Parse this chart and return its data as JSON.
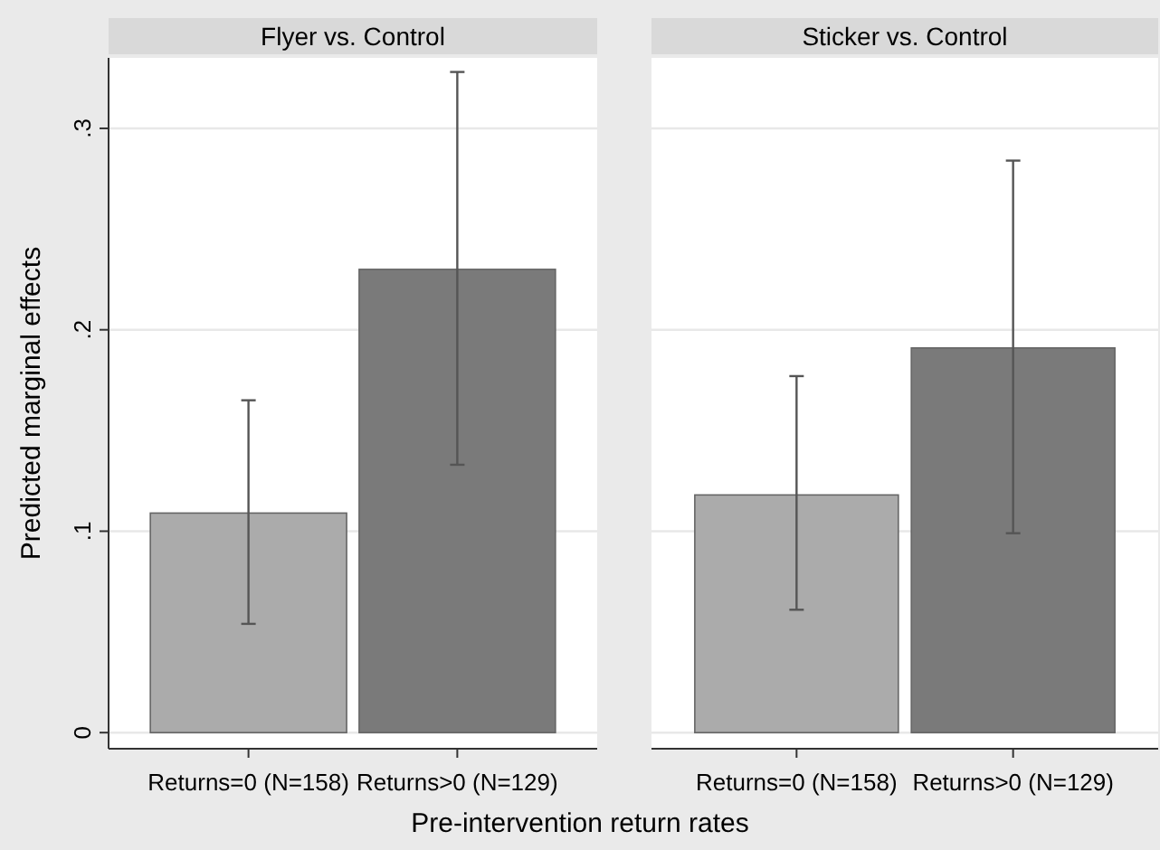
{
  "chart_data": [
    {
      "type": "bar",
      "title": "Flyer vs. Control",
      "ylabel": "Predicted marginal effects",
      "xlabel": "Pre-intervention return rates",
      "categories": [
        "Returns=0 (N=158)",
        "Returns>0 (N=129)"
      ],
      "values": [
        0.109,
        0.23
      ],
      "colors": [
        "#ababab",
        "#7a7a7a"
      ],
      "errors": [
        [
          0.054,
          0.165
        ],
        [
          0.133,
          0.328
        ]
      ],
      "ylim": [
        -0.008,
        0.335
      ],
      "yticks": [
        {
          "value": 0,
          "label": "0"
        },
        {
          "value": 0.1,
          "label": ".1"
        },
        {
          "value": 0.2,
          "label": ".2"
        },
        {
          "value": 0.3,
          "label": ".3"
        }
      ],
      "grid": "y"
    },
    {
      "type": "bar",
      "title": "Sticker vs. Control",
      "categories": [
        "Returns=0 (N=158)",
        "Returns>0 (N=129)"
      ],
      "values": [
        0.118,
        0.191
      ],
      "colors": [
        "#ababab",
        "#7a7a7a"
      ],
      "errors": [
        [
          0.061,
          0.177
        ],
        [
          0.099,
          0.284
        ]
      ],
      "ylim": [
        -0.008,
        0.335
      ],
      "yticks": [
        0,
        0.1,
        0.2,
        0.3
      ],
      "grid": "y",
      "tick_labels": "x"
    }
  ]
}
